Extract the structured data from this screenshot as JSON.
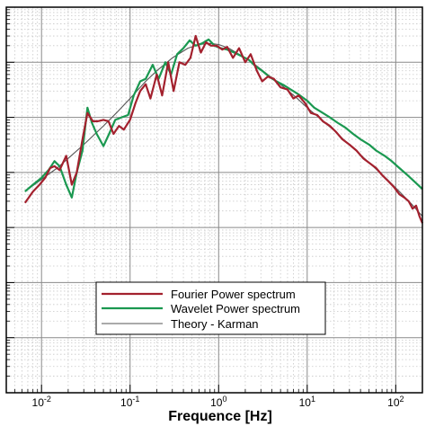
{
  "chart_data": {
    "type": "line",
    "xlabel": "Frequence [Hz]",
    "ylabel": "",
    "x_scale": "log",
    "y_scale": "log",
    "xlim": [
      0.004,
      200
    ],
    "ylim": [
      1e-06,
      10
    ],
    "x_ticks": [
      {
        "value": 0.01,
        "base": "10",
        "exp": "-2"
      },
      {
        "value": 0.1,
        "base": "10",
        "exp": "-1"
      },
      {
        "value": 1,
        "base": "10",
        "exp": "0"
      },
      {
        "value": 10,
        "base": "10",
        "exp": "1"
      },
      {
        "value": 100,
        "base": "10",
        "exp": "2"
      }
    ],
    "y_major_ticks": [
      1e-05,
      0.0001,
      0.001,
      0.01,
      0.1,
      1
    ],
    "grid": true,
    "legend_position": "lower-center",
    "series": [
      {
        "name": "Fourier Power spectrum",
        "color": "#a3212e",
        "x": [
          0.0065,
          0.008,
          0.0095,
          0.011,
          0.0125,
          0.014,
          0.016,
          0.019,
          0.022,
          0.025,
          0.029,
          0.033,
          0.038,
          0.043,
          0.05,
          0.057,
          0.065,
          0.075,
          0.085,
          0.1,
          0.115,
          0.13,
          0.15,
          0.17,
          0.2,
          0.23,
          0.27,
          0.31,
          0.36,
          0.42,
          0.48,
          0.55,
          0.63,
          0.72,
          0.82,
          0.95,
          1.1,
          1.25,
          1.45,
          1.7,
          2.0,
          2.3,
          2.7,
          3.1,
          3.6,
          4.2,
          5.0,
          6.0,
          7.0,
          8.0,
          9.5,
          11,
          13,
          15,
          18,
          21,
          25,
          30,
          36,
          43,
          50,
          60,
          70,
          82,
          95,
          110,
          125,
          140,
          155,
          170,
          185,
          200
        ],
        "y": [
          0.0028,
          0.0045,
          0.006,
          0.008,
          0.012,
          0.013,
          0.011,
          0.02,
          0.006,
          0.01,
          0.04,
          0.12,
          0.085,
          0.085,
          0.09,
          0.085,
          0.05,
          0.07,
          0.06,
          0.09,
          0.18,
          0.3,
          0.4,
          0.22,
          0.6,
          0.25,
          1.0,
          0.3,
          1.0,
          0.9,
          1.2,
          3.0,
          1.5,
          2.3,
          2.0,
          2.0,
          1.7,
          1.9,
          1.2,
          1.8,
          1.0,
          1.4,
          0.7,
          0.45,
          0.55,
          0.5,
          0.35,
          0.32,
          0.22,
          0.25,
          0.18,
          0.12,
          0.11,
          0.085,
          0.07,
          0.055,
          0.04,
          0.032,
          0.025,
          0.018,
          0.015,
          0.012,
          0.009,
          0.007,
          0.0055,
          0.004,
          0.0035,
          0.003,
          0.0022,
          0.0025,
          0.0016,
          0.0012
        ]
      },
      {
        "name": "Wavelet Power spectrum",
        "color": "#1a9850",
        "x": [
          0.0065,
          0.008,
          0.01,
          0.012,
          0.014,
          0.016,
          0.019,
          0.022,
          0.025,
          0.029,
          0.033,
          0.037,
          0.042,
          0.05,
          0.058,
          0.068,
          0.08,
          0.095,
          0.11,
          0.13,
          0.15,
          0.18,
          0.21,
          0.25,
          0.29,
          0.34,
          0.4,
          0.47,
          0.55,
          0.65,
          0.77,
          0.9,
          1.05,
          1.25,
          1.5,
          1.8,
          2.2,
          2.6,
          3.1,
          3.7,
          4.5,
          5.5,
          6.5,
          8,
          10,
          12,
          15,
          18,
          22,
          27,
          33,
          40,
          50,
          60,
          75,
          90,
          110,
          135,
          160,
          200
        ],
        "y": [
          0.0045,
          0.006,
          0.008,
          0.011,
          0.016,
          0.013,
          0.006,
          0.0035,
          0.01,
          0.025,
          0.15,
          0.08,
          0.05,
          0.03,
          0.05,
          0.09,
          0.1,
          0.11,
          0.25,
          0.45,
          0.5,
          0.9,
          0.5,
          1.0,
          0.6,
          1.4,
          1.8,
          2.5,
          2.0,
          2.2,
          2.6,
          2.0,
          1.8,
          1.7,
          1.5,
          1.3,
          1.1,
          0.85,
          0.7,
          0.55,
          0.45,
          0.38,
          0.32,
          0.26,
          0.2,
          0.15,
          0.12,
          0.1,
          0.08,
          0.065,
          0.05,
          0.04,
          0.032,
          0.025,
          0.02,
          0.016,
          0.012,
          0.009,
          0.007,
          0.005
        ]
      },
      {
        "name": "Theory - Karman",
        "color": "#555555",
        "x": [
          0.0065,
          0.01,
          0.015,
          0.02,
          0.03,
          0.05,
          0.07,
          0.1,
          0.15,
          0.2,
          0.3,
          0.45,
          0.6,
          0.8,
          1.0,
          1.3,
          1.7,
          2.2,
          3.0,
          4.0,
          5.5,
          7.5,
          10,
          14,
          20,
          28,
          40,
          55,
          80,
          110,
          150,
          200
        ],
        "y": [
          0.0045,
          0.0075,
          0.012,
          0.018,
          0.032,
          0.07,
          0.12,
          0.22,
          0.45,
          0.7,
          1.2,
          1.8,
          2.1,
          2.2,
          2.1,
          1.8,
          1.4,
          1.1,
          0.75,
          0.52,
          0.35,
          0.23,
          0.15,
          0.095,
          0.058,
          0.035,
          0.021,
          0.013,
          0.0075,
          0.0045,
          0.0027,
          0.0016
        ]
      }
    ]
  }
}
